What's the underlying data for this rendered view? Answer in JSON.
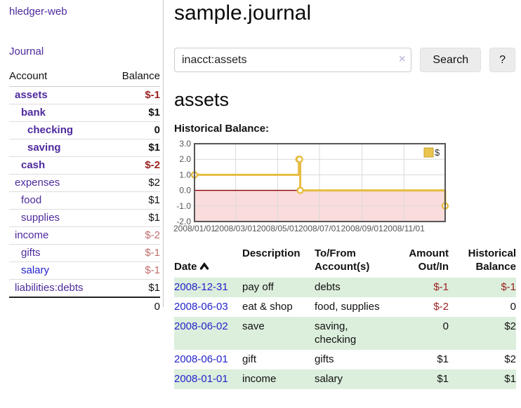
{
  "app": {
    "brand": "hledger-web"
  },
  "sidebar": {
    "nav": {
      "journal": "Journal"
    },
    "accounts_header": {
      "account": "Account",
      "balance": "Balance"
    },
    "accounts": [
      {
        "name": "assets",
        "balance": "$-1"
      },
      {
        "name": "bank",
        "balance": "$1"
      },
      {
        "name": "checking",
        "balance": "0"
      },
      {
        "name": "saving",
        "balance": "$1"
      },
      {
        "name": "cash",
        "balance": "$-2"
      },
      {
        "name": "expenses",
        "balance": "$2"
      },
      {
        "name": "food",
        "balance": "$1"
      },
      {
        "name": "supplies",
        "balance": "$1"
      },
      {
        "name": "income",
        "balance": "$-2"
      },
      {
        "name": "gifts",
        "balance": "$-1"
      },
      {
        "name": "salary",
        "balance": "$-1"
      },
      {
        "name": "liabilities:debts",
        "balance": "$1"
      }
    ],
    "total": "0"
  },
  "main": {
    "title": "sample.journal",
    "search": {
      "value": "inacct:assets",
      "clear_icon": "×",
      "search_label": "Search",
      "help_label": "?"
    },
    "account_heading": "assets",
    "chart_label": "Historical Balance:"
  },
  "chart_data": {
    "type": "line",
    "step": true,
    "title": "Historical Balance:",
    "series": [
      {
        "name": "$",
        "points": [
          [
            "2008-01-01",
            1
          ],
          [
            "2008-06-01",
            2
          ],
          [
            "2008-06-02",
            2
          ],
          [
            "2008-06-03",
            0
          ],
          [
            "2008-12-31",
            -1
          ]
        ]
      }
    ],
    "xmin": "2008-01-01",
    "xmax": "2008-12-31",
    "x_tick_labels": [
      "2008/01/01",
      "2008/03/01",
      "2008/05/01",
      "2008/07/01",
      "2008/09/01",
      "2008/11/01"
    ],
    "y_ticks": [
      3,
      2,
      1,
      0,
      -1,
      -2
    ],
    "ylim": [
      -2,
      3
    ],
    "grid": true,
    "legend_position": "top-right",
    "colors": {
      "line": "#e6bc42",
      "negative_region": "#fadcdc",
      "zero_line": "#8b0000",
      "grid": "#d9d9d9",
      "border": "#565656",
      "legend_swatch": "#eac44d",
      "legend_swatch_border": "#c79f33",
      "tick_text": "#555555"
    }
  },
  "register": {
    "headers": [
      "Date",
      "Description",
      "To/From\nAccount(s)",
      "Amount\nOut/In",
      "Historical\nBalance"
    ],
    "sort_icon": "chevron-up",
    "rows": [
      {
        "date": "2008-12-31",
        "description": "pay off",
        "accounts": "debts",
        "amount": "$-1",
        "balance": "$-1"
      },
      {
        "date": "2008-06-03",
        "description": "eat & shop",
        "accounts": "food, supplies",
        "amount": "$-2",
        "balance": "0"
      },
      {
        "date": "2008-06-02",
        "description": "save",
        "accounts": "saving,\nchecking",
        "amount": "0",
        "balance": "$2"
      },
      {
        "date": "2008-06-01",
        "description": "gift",
        "accounts": "gifts",
        "amount": "$1",
        "balance": "$2"
      },
      {
        "date": "2008-01-01",
        "description": "income",
        "accounts": "salary",
        "amount": "$1",
        "balance": "$1"
      }
    ]
  },
  "colors": {
    "link_purple": "#4e2a9e",
    "link_blue": "#2323cc",
    "negative_strong": "#9b2222",
    "negative_soft": "#c26e6e",
    "row_green": "#dceedc"
  }
}
